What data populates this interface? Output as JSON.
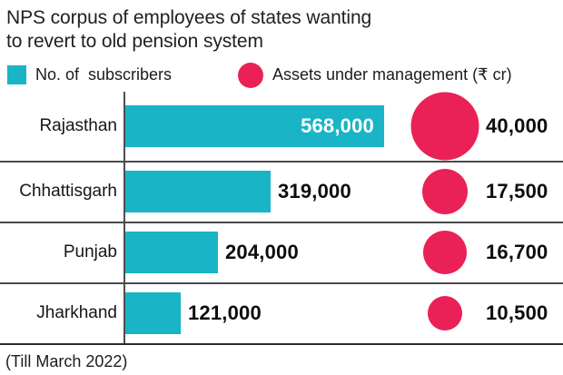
{
  "title": {
    "line1": "NPS corpus of employees of states wanting",
    "line2": "to revert to old pension system",
    "full": "NPS corpus of employees of states wanting to revert to old pension system"
  },
  "legend": {
    "subscribers": {
      "label": "No. of  subscribers",
      "color": "#19b4c6"
    },
    "aum": {
      "label": "Assets under management (₹ cr)",
      "color": "#ea2157"
    }
  },
  "footer": "(Till March 2022)",
  "colors": {
    "bar": "#19b4c6",
    "bubble": "#ea2157",
    "separator": "#4a4a4a",
    "bar_value_inside": "#ffffff",
    "text": "#1a1a1a"
  },
  "chart_data": {
    "type": "bar",
    "orientation": "horizontal",
    "title": "NPS corpus of employees of states wanting to revert to old pension system",
    "footnote": "(Till March 2022)",
    "legend_position": "top",
    "grid": "row-separators",
    "categories": [
      "Rajasthan",
      "Chhattisgarh",
      "Punjab",
      "Jharkhand"
    ],
    "series": [
      {
        "name": "No. of subscribers",
        "type": "bar",
        "color": "#19b4c6",
        "values": [
          568000,
          319000,
          204000,
          121000
        ],
        "labels": [
          "568,000",
          "319,000",
          "204,000",
          "121,000"
        ]
      },
      {
        "name": "Assets under management (₹ cr)",
        "type": "bubble",
        "color": "#ea2157",
        "values": [
          40000,
          17500,
          16700,
          10500
        ],
        "labels": [
          "40,000",
          "17,500",
          "16,700",
          "10,500"
        ]
      }
    ]
  }
}
